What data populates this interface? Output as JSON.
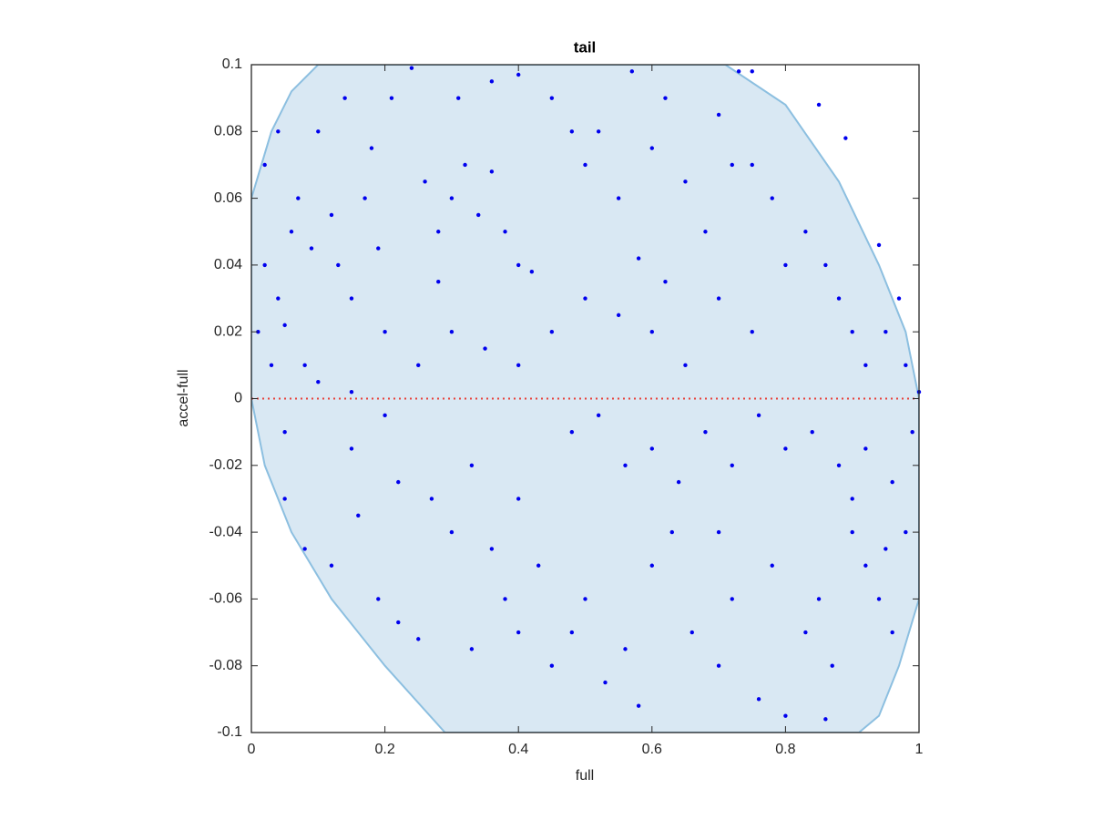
{
  "chart_data": {
    "type": "scatter",
    "title": "tail",
    "xlabel": "full",
    "ylabel": "accel-full",
    "xlim": [
      0,
      1
    ],
    "ylim": [
      -0.1,
      0.1
    ],
    "xticks": [
      0,
      0.2,
      0.4,
      0.6,
      0.8,
      1
    ],
    "yticks": [
      -0.1,
      -0.08,
      -0.06,
      -0.04,
      -0.02,
      0,
      0.02,
      0.04,
      0.06,
      0.08,
      0.1
    ],
    "region": {
      "color": "#d9e8f3",
      "edge_color": "#8cbfe0",
      "x": [
        0,
        0.03,
        0.06,
        0.1,
        0.71,
        0.8,
        0.88,
        0.94,
        0.98,
        1.0,
        1.0,
        0.97,
        0.94,
        0.91,
        0.29,
        0.2,
        0.12,
        0.06,
        0.02,
        0
      ],
      "y": [
        0.06,
        0.08,
        0.092,
        0.1,
        0.1,
        0.088,
        0.065,
        0.04,
        0.02,
        0.0,
        -0.06,
        -0.08,
        -0.095,
        -0.1,
        -0.1,
        -0.08,
        -0.06,
        -0.04,
        -0.02,
        0
      ]
    },
    "reference_line": {
      "y": 0,
      "color": "#e8413a"
    },
    "series": [
      {
        "color": "#0000ee",
        "x": [
          0.01,
          0.02,
          0.03,
          0.04,
          0.05,
          0.06,
          0.02,
          0.04,
          0.07,
          0.09,
          0.08,
          0.1,
          0.12,
          0.13,
          0.15,
          0.17,
          0.19,
          0.2,
          0.14,
          0.18,
          0.21,
          0.24,
          0.26,
          0.28,
          0.3,
          0.32,
          0.34,
          0.36,
          0.38,
          0.4,
          0.31,
          0.36,
          0.4,
          0.45,
          0.48,
          0.5,
          0.52,
          0.55,
          0.57,
          0.6,
          0.62,
          0.65,
          0.68,
          0.7,
          0.72,
          0.75,
          0.78,
          0.8,
          0.83,
          0.86,
          0.88,
          0.9,
          0.92,
          0.95,
          0.98,
          1.0,
          0.73,
          0.75,
          0.85,
          0.89,
          0.94,
          0.97,
          0.05,
          0.1,
          0.15,
          0.2,
          0.25,
          0.3,
          0.35,
          0.4,
          0.45,
          0.5,
          0.55,
          0.6,
          0.65,
          0.7,
          0.75,
          0.28,
          0.42,
          0.58,
          0.62,
          0.48,
          0.52,
          0.56,
          0.6,
          0.64,
          0.68,
          0.72,
          0.76,
          0.8,
          0.84,
          0.88,
          0.92,
          0.96,
          0.99,
          0.05,
          0.08,
          0.12,
          0.16,
          0.19,
          0.22,
          0.25,
          0.27,
          0.3,
          0.33,
          0.36,
          0.38,
          0.4,
          0.43,
          0.45,
          0.48,
          0.5,
          0.53,
          0.56,
          0.58,
          0.6,
          0.63,
          0.66,
          0.7,
          0.72,
          0.76,
          0.78,
          0.8,
          0.83,
          0.85,
          0.87,
          0.9,
          0.92,
          0.94,
          0.96,
          0.98,
          0.15,
          0.22,
          0.33,
          0.4,
          0.7,
          0.86,
          0.9,
          0.95
        ],
        "y": [
          0.02,
          0.04,
          0.01,
          0.03,
          0.022,
          0.05,
          0.07,
          0.08,
          0.06,
          0.045,
          0.01,
          0.08,
          0.055,
          0.04,
          0.03,
          0.06,
          0.045,
          0.02,
          0.09,
          0.075,
          0.09,
          0.099,
          0.065,
          0.05,
          0.06,
          0.07,
          0.055,
          0.068,
          0.05,
          0.04,
          0.09,
          0.095,
          0.097,
          0.09,
          0.08,
          0.07,
          0.08,
          0.06,
          0.098,
          0.075,
          0.09,
          0.065,
          0.05,
          0.085,
          0.07,
          0.07,
          0.06,
          0.04,
          0.05,
          0.04,
          0.03,
          0.02,
          0.01,
          0.02,
          0.01,
          0.002,
          0.098,
          0.098,
          0.088,
          0.078,
          0.046,
          0.03,
          -0.01,
          0.005,
          0.002,
          -0.005,
          0.01,
          0.02,
          0.015,
          0.01,
          0.02,
          0.03,
          0.025,
          0.02,
          0.01,
          0.03,
          0.02,
          0.035,
          0.038,
          0.042,
          0.035,
          -0.01,
          -0.005,
          -0.02,
          -0.015,
          -0.025,
          -0.01,
          -0.02,
          -0.005,
          -0.015,
          -0.01,
          -0.02,
          -0.015,
          -0.025,
          -0.01,
          -0.03,
          -0.045,
          -0.05,
          -0.035,
          -0.06,
          -0.067,
          -0.072,
          -0.03,
          -0.04,
          -0.075,
          -0.045,
          -0.06,
          -0.07,
          -0.05,
          -0.08,
          -0.07,
          -0.06,
          -0.085,
          -0.075,
          -0.092,
          -0.05,
          -0.04,
          -0.07,
          -0.08,
          -0.06,
          -0.09,
          -0.05,
          -0.095,
          -0.07,
          -0.06,
          -0.08,
          -0.04,
          -0.05,
          -0.06,
          -0.07,
          -0.04,
          -0.015,
          -0.025,
          -0.02,
          -0.03,
          -0.04,
          -0.096,
          -0.03,
          -0.045
        ]
      }
    ]
  }
}
